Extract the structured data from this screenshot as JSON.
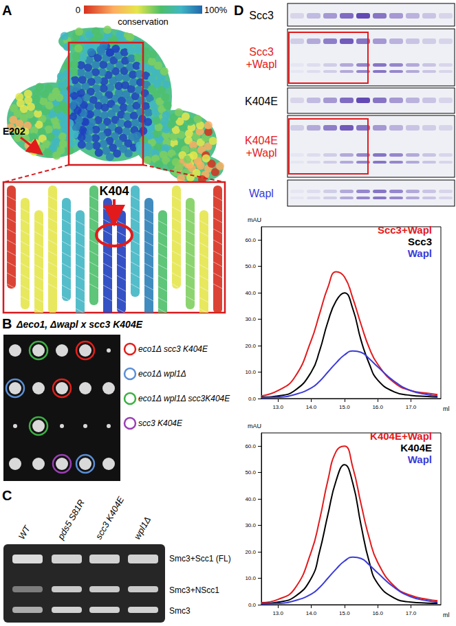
{
  "panel_A": {
    "label": "A",
    "colorbar": {
      "min_label": "0",
      "max_label": "100%",
      "title": "conservation"
    },
    "annotations": [
      "E202",
      "K404"
    ]
  },
  "panel_B": {
    "label": "B",
    "title": "Δeco1, Δwapl x scc3 K404E",
    "legend": [
      {
        "label": "eco1Δ scc3 K404E",
        "color": "#e3201c"
      },
      {
        "label": "eco1Δ wpl1Δ",
        "color": "#5b8fd6"
      },
      {
        "label": "eco1Δ wpl1Δ scc3K404E",
        "color": "#3cb043"
      },
      {
        "label": "scc3 K404E",
        "color": "#9b3fb5"
      }
    ]
  },
  "panel_C": {
    "label": "C",
    "lanes": [
      "WT",
      "pds5 S81R",
      "scc3 K404E",
      "wpl1Δ"
    ],
    "bands": [
      "Smc3+Scc1 (FL)",
      "Smc3+NScc1",
      "Smc3"
    ]
  },
  "panel_D": {
    "label": "D",
    "gels": [
      {
        "lines": [
          "Scc3"
        ],
        "color": "#000000"
      },
      {
        "lines": [
          "Scc3",
          "+Wapl"
        ],
        "color": "#e31a1c"
      },
      {
        "lines": [
          "K404E"
        ],
        "color": "#000000"
      },
      {
        "lines": [
          "K404E",
          "+Wapl"
        ],
        "color": "#e31a1c"
      },
      {
        "lines": [
          "Wapl"
        ],
        "color": "#3b3bd9"
      }
    ]
  },
  "chart_data": [
    {
      "type": "line",
      "xlabel": "ml",
      "ylabel": "mAU",
      "x": [
        12.5,
        13.0,
        13.5,
        14.0,
        14.25,
        14.5,
        14.75,
        15.0,
        15.25,
        15.5,
        15.75,
        16.0,
        16.5,
        17.0,
        17.5,
        17.8
      ],
      "series": [
        {
          "name": "Scc3+Wapl",
          "color": "#e31a1c",
          "values": [
            1,
            3,
            8,
            22,
            32,
            42,
            48,
            46,
            38,
            28,
            19,
            13,
            6,
            3,
            2,
            1.5
          ]
        },
        {
          "name": "Scc3",
          "color": "#000000",
          "values": [
            0.5,
            1,
            3,
            10,
            18,
            29,
            37,
            40,
            34,
            22,
            13,
            7,
            2.5,
            1.2,
            0.8,
            0.6
          ]
        },
        {
          "name": "Wapl",
          "color": "#3b3bd9",
          "values": [
            0.3,
            0.5,
            1.5,
            4,
            6.5,
            10,
            13.5,
            16.5,
            18,
            17.5,
            15,
            12,
            6.5,
            3,
            1.5,
            1
          ]
        }
      ],
      "xlim": [
        12.5,
        17.9
      ],
      "xticks": [
        {
          "value": 13,
          "label": "13.0"
        },
        {
          "value": 14,
          "label": "14.0"
        },
        {
          "value": 15,
          "label": "15.0"
        },
        {
          "value": 16,
          "label": "16.0"
        },
        {
          "value": 17,
          "label": "17.0"
        }
      ],
      "ylim": [
        0,
        65
      ],
      "yticks": [
        {
          "value": 0,
          "label": "0.0"
        },
        {
          "value": 10,
          "label": "10.0"
        },
        {
          "value": 20,
          "label": "20.0"
        },
        {
          "value": 30,
          "label": "30.0"
        },
        {
          "value": 40,
          "label": "40.0"
        },
        {
          "value": 50,
          "label": "50.0"
        },
        {
          "value": 60,
          "label": "60.0"
        }
      ],
      "legend": "top-right",
      "grid": false
    },
    {
      "type": "line",
      "xlabel": "ml",
      "ylabel": "mAU",
      "x": [
        12.5,
        13.0,
        13.5,
        14.0,
        14.25,
        14.5,
        14.75,
        15.0,
        15.25,
        15.5,
        15.75,
        16.0,
        16.5,
        17.0,
        17.5,
        17.8
      ],
      "series": [
        {
          "name": "K404E+Wapl",
          "color": "#e31a1c",
          "values": [
            0.8,
            2,
            6,
            20,
            32,
            47,
            58,
            60,
            52,
            38,
            25,
            16,
            7,
            3.5,
            2,
            1.5
          ]
        },
        {
          "name": "K404E",
          "color": "#000000",
          "values": [
            0.4,
            1,
            3,
            10,
            20,
            34,
            47,
            53,
            46,
            30,
            16,
            8,
            2.5,
            1,
            0.6,
            0.5
          ]
        },
        {
          "name": "Wapl",
          "color": "#3b3bd9",
          "values": [
            0.3,
            0.5,
            1.5,
            4,
            6.5,
            10,
            13.5,
            16.5,
            18,
            17.5,
            15,
            12,
            6.5,
            3,
            1.5,
            1
          ]
        }
      ],
      "xlim": [
        12.5,
        17.9
      ],
      "xticks": [
        {
          "value": 13,
          "label": "13.0"
        },
        {
          "value": 14,
          "label": "14.0"
        },
        {
          "value": 15,
          "label": "15.0"
        },
        {
          "value": 16,
          "label": "16.0"
        },
        {
          "value": 17,
          "label": "17.0"
        }
      ],
      "ylim": [
        0,
        65
      ],
      "yticks": [
        {
          "value": 0,
          "label": "0.0"
        },
        {
          "value": 10,
          "label": "10.0"
        },
        {
          "value": 20,
          "label": "20.0"
        },
        {
          "value": 30,
          "label": "30.0"
        },
        {
          "value": 40,
          "label": "40.0"
        },
        {
          "value": 50,
          "label": "50.0"
        },
        {
          "value": 60,
          "label": "60.0"
        }
      ],
      "legend": "top-right",
      "grid": false
    }
  ]
}
